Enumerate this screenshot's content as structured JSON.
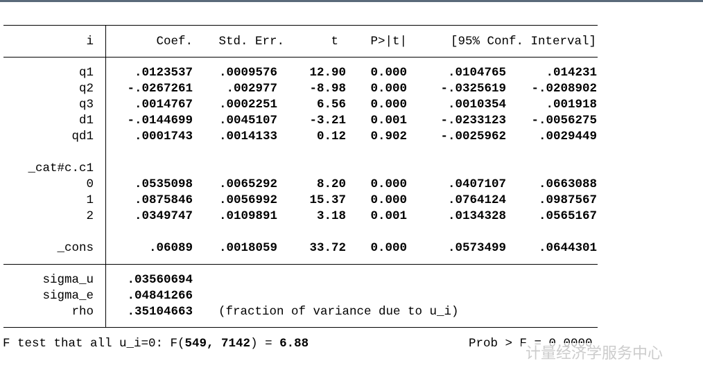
{
  "table": {
    "header": [
      "i",
      "Coef.",
      "Std. Err.",
      "t",
      "P>|t|",
      "[95% Conf. Interval]"
    ],
    "rows": [
      [
        "q1",
        ".0123537",
        ".0009576",
        "12.90",
        "0.000",
        ".0104765",
        ".014231"
      ],
      [
        "q2",
        "-.0267261",
        ".002977",
        "-8.98",
        "0.000",
        "-.0325619",
        "-.0208902"
      ],
      [
        "q3",
        ".0014767",
        ".0002251",
        "6.56",
        "0.000",
        ".0010354",
        ".001918"
      ],
      [
        "d1",
        "-.0144699",
        ".0045107",
        "-3.21",
        "0.001",
        "-.0233123",
        "-.0056275"
      ],
      [
        "qd1",
        ".0001743",
        ".0014133",
        "0.12",
        "0.902",
        "-.0025962",
        ".0029449"
      ],
      [
        "_cat#c.c1"
      ],
      [
        "0",
        ".0535098",
        ".0065292",
        "8.20",
        "0.000",
        ".0407107",
        ".0663088"
      ],
      [
        "1",
        ".0875846",
        ".0056992",
        "15.37",
        "0.000",
        ".0764124",
        ".0987567"
      ],
      [
        "2",
        ".0349747",
        ".0109891",
        "3.18",
        "0.001",
        ".0134328",
        ".0565167"
      ],
      [
        "_cons",
        ".06089",
        ".0018059",
        "33.72",
        "0.000",
        ".0573499",
        ".0644301"
      ]
    ],
    "stats": [
      [
        "sigma_u",
        ".03560694"
      ],
      [
        "sigma_e",
        ".04841266"
      ],
      [
        "rho",
        ".35104663",
        "(fraction of variance due to u_i)"
      ]
    ]
  },
  "footer": {
    "parts": [
      "F test that all u_i=0: F(",
      "549, 7142",
      ") = ",
      "6.88"
    ],
    "prob": "Prob > F = 0.0000"
  },
  "watermark": "计量经济学服务中心"
}
